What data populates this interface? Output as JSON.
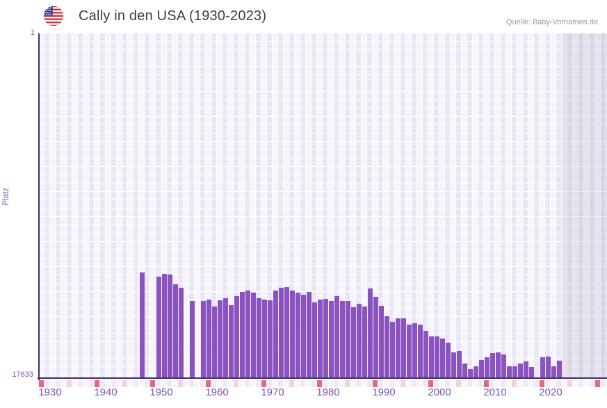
{
  "header": {
    "flag": "us-flag",
    "title": "Cally in den USA (1930-2023)",
    "source": "Quelle: Baby-Vornamen.de"
  },
  "axes": {
    "y_label": "Platz",
    "y_top_tick": "1",
    "y_bottom_tick": "17633",
    "x_ticks": [
      "1930",
      "1940",
      "1950",
      "1960",
      "1970",
      "1980",
      "1990",
      "2000",
      "2010",
      "2020"
    ]
  },
  "chart_data": {
    "type": "bar",
    "title": "Cally in den USA (1930-2023)",
    "xlabel": "",
    "ylabel": "Platz",
    "y_axis_inverted": true,
    "ylim": [
      1,
      17633
    ],
    "x_range_years": [
      1930,
      2031
    ],
    "future_shade_years": [
      2024,
      2031
    ],
    "decade_marker_years": [
      1930,
      1940,
      1950,
      1960,
      1970,
      1980,
      1990,
      2000,
      2010,
      2020,
      2030
    ],
    "half_decade_marker_years": [
      1935,
      1945,
      1955,
      1965,
      1975,
      1985,
      1995,
      2005,
      2015,
      2025
    ],
    "grid": true,
    "legend": "none",
    "series_name": "Platz von Cally in den USA",
    "points": [
      [
        1948,
        12210
      ],
      [
        1951,
        12430
      ],
      [
        1952,
        12270
      ],
      [
        1953,
        12320
      ],
      [
        1954,
        12810
      ],
      [
        1955,
        12970
      ],
      [
        1957,
        13650
      ],
      [
        1959,
        13650
      ],
      [
        1960,
        13580
      ],
      [
        1961,
        13930
      ],
      [
        1962,
        13610
      ],
      [
        1963,
        13520
      ],
      [
        1964,
        13880
      ],
      [
        1965,
        13410
      ],
      [
        1966,
        13210
      ],
      [
        1967,
        13130
      ],
      [
        1968,
        13240
      ],
      [
        1969,
        13510
      ],
      [
        1970,
        13590
      ],
      [
        1971,
        13610
      ],
      [
        1972,
        13130
      ],
      [
        1973,
        13000
      ],
      [
        1974,
        12950
      ],
      [
        1975,
        13140
      ],
      [
        1976,
        13250
      ],
      [
        1977,
        13330
      ],
      [
        1978,
        13200
      ],
      [
        1979,
        13720
      ],
      [
        1980,
        13600
      ],
      [
        1981,
        13550
      ],
      [
        1982,
        13670
      ],
      [
        1983,
        13420
      ],
      [
        1984,
        13660
      ],
      [
        1985,
        13650
      ],
      [
        1986,
        13970
      ],
      [
        1987,
        13800
      ],
      [
        1988,
        13940
      ],
      [
        1989,
        13030
      ],
      [
        1990,
        13460
      ],
      [
        1991,
        13910
      ],
      [
        1992,
        14450
      ],
      [
        1993,
        14740
      ],
      [
        1994,
        14550
      ],
      [
        1995,
        14540
      ],
      [
        1996,
        14880
      ],
      [
        1997,
        14780
      ],
      [
        1998,
        14880
      ],
      [
        1999,
        15200
      ],
      [
        2000,
        15470
      ],
      [
        2001,
        15470
      ],
      [
        2002,
        15580
      ],
      [
        2003,
        15790
      ],
      [
        2004,
        16290
      ],
      [
        2005,
        16200
      ],
      [
        2006,
        16840
      ],
      [
        2007,
        17130
      ],
      [
        2008,
        16980
      ],
      [
        2009,
        16690
      ],
      [
        2010,
        16520
      ],
      [
        2011,
        16310
      ],
      [
        2012,
        16300
      ],
      [
        2013,
        16380
      ],
      [
        2014,
        17010
      ],
      [
        2015,
        16980
      ],
      [
        2016,
        16860
      ],
      [
        2017,
        16730
      ],
      [
        2018,
        17040
      ],
      [
        2020,
        16540
      ],
      [
        2021,
        16510
      ],
      [
        2022,
        16980
      ],
      [
        2023,
        16710
      ]
    ],
    "missing_years": [
      1949,
      1950,
      1956,
      1958,
      2019
    ]
  },
  "colors": {
    "bar": "#8a53c1",
    "axis_line": "#3f2c72",
    "tick_label": "#7d55b5",
    "grid_cell_odd": "#eae6f6",
    "grid_cell_even": "#f7f5fc",
    "grid_line": "#ffffff",
    "future_shade": "rgba(105,100,135,0.13)",
    "marker_decade": "#e2697b",
    "marker_half_decade": "#f5d0da",
    "strip_cell_odd": "#edeaf7",
    "strip_cell_even": "#f8f6fc",
    "title_text": "#3d3d3d",
    "source_text": "#9b9b9b"
  }
}
